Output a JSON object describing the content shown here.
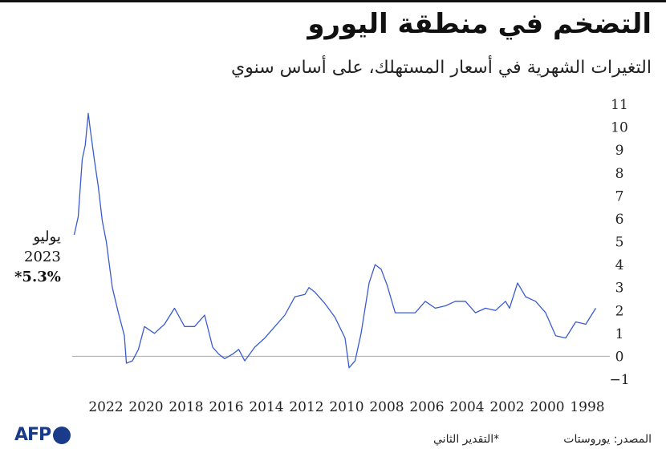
{
  "header": {
    "title": "التضخم في منطقة اليورو",
    "subtitle": "التغيرات الشهرية في أسعار المستهلك، على أساس سنوي"
  },
  "annotation": {
    "line1": "يوليو",
    "line2": "2023",
    "line3": "*5.3%"
  },
  "footer": {
    "logo": "AFP",
    "note": "*التقدير الثاني",
    "source": "المصدر: يوروستات"
  },
  "colors": {
    "line": "#3a5bd0",
    "zero_line": "#aaaaaa",
    "text": "#222222",
    "logo": "#1a3a8a"
  },
  "chart_data": {
    "type": "line",
    "x_reversed": true,
    "x_tick_labels": [
      "2022",
      "2020",
      "2018",
      "2016",
      "2014",
      "2012",
      "2010",
      "2008",
      "2006",
      "2004",
      "2002",
      "2000",
      "1998"
    ],
    "y_ticks": [
      -1,
      0,
      1,
      2,
      3,
      4,
      5,
      6,
      7,
      8,
      9,
      10,
      11
    ],
    "ylim": [
      -1,
      11
    ],
    "xlim": [
      1997.0,
      2023.6
    ],
    "series": [
      {
        "x": [
          1997.5,
          1998.0,
          1998.5,
          1999.0,
          1999.5,
          2000.0,
          2000.5,
          2001.0,
          2001.4,
          2001.8,
          2002.0,
          2002.5,
          2003.0,
          2003.5,
          2004.0,
          2004.5,
          2005.0,
          2005.5,
          2006.0,
          2006.5,
          2007.0,
          2007.5,
          2007.9,
          2008.2,
          2008.5,
          2008.8,
          2009.2,
          2009.5,
          2009.8,
          2010.0,
          2010.5,
          2011.0,
          2011.5,
          2011.8,
          2012.0,
          2012.5,
          2013.0,
          2013.5,
          2014.0,
          2014.5,
          2015.0,
          2015.3,
          2015.6,
          2016.0,
          2016.3,
          2016.6,
          2017.0,
          2017.5,
          2018.0,
          2018.5,
          2019.0,
          2019.5,
          2020.0,
          2020.3,
          2020.6,
          2020.9,
          2021.0,
          2021.3,
          2021.6,
          2021.9,
          2022.1,
          2022.3,
          2022.5,
          2022.7,
          2022.8,
          2022.95,
          2023.1,
          2023.3,
          2023.5
        ],
        "y": [
          2.1,
          1.4,
          1.5,
          0.8,
          0.9,
          1.9,
          2.4,
          2.6,
          3.2,
          2.1,
          2.4,
          2.0,
          2.1,
          1.9,
          2.4,
          2.4,
          2.2,
          2.1,
          2.4,
          1.9,
          1.9,
          1.9,
          3.1,
          3.8,
          4.0,
          3.2,
          1.0,
          -0.2,
          -0.5,
          0.8,
          1.7,
          2.3,
          2.8,
          3.0,
          2.7,
          2.6,
          1.8,
          1.3,
          0.8,
          0.4,
          -0.2,
          0.3,
          0.1,
          -0.1,
          0.1,
          0.4,
          1.8,
          1.3,
          1.3,
          2.1,
          1.4,
          1.0,
          1.3,
          0.3,
          -0.2,
          -0.3,
          0.9,
          1.9,
          3.0,
          5.0,
          5.9,
          7.4,
          8.6,
          9.9,
          10.6,
          9.2,
          8.6,
          6.1,
          5.3
        ]
      }
    ]
  }
}
